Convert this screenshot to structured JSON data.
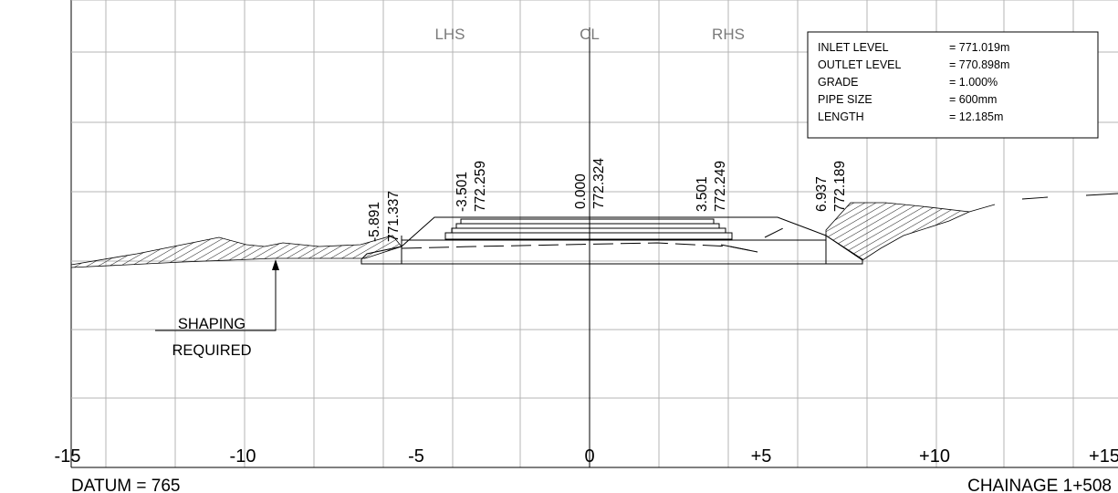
{
  "header_labels": {
    "lhs": "LHS",
    "cl": "CL",
    "rhs": "RHS"
  },
  "info_box": [
    {
      "label": "INLET LEVEL",
      "value": "= 771.019m"
    },
    {
      "label": "OUTLET LEVEL",
      "value": "= 770.898m"
    },
    {
      "label": "GRADE",
      "value": "= 1.000%"
    },
    {
      "label": "PIPE SIZE",
      "value": "= 600mm"
    },
    {
      "label": "LENGTH",
      "value": "= 12.185m"
    }
  ],
  "levels": [
    {
      "offset": "-5.891",
      "level": "771.337"
    },
    {
      "offset": "-3.501",
      "level": "772.259"
    },
    {
      "offset": "0.000",
      "level": "772.324"
    },
    {
      "offset": "3.501",
      "level": "772.249"
    },
    {
      "offset": "6.937",
      "level": "772.189"
    }
  ],
  "x_ticks": [
    "-15",
    "-10",
    "-5",
    "0",
    "+5",
    "+10",
    "+15"
  ],
  "note": {
    "line1": "SHAPING",
    "line2": "REQUIRED"
  },
  "footer": {
    "datum": "DATUM = 765",
    "chainage": "CHAINAGE 1+508"
  },
  "colors": {
    "grid": "#b4b4b4",
    "ink": "#000000",
    "header_text": "#7a7a7a"
  }
}
